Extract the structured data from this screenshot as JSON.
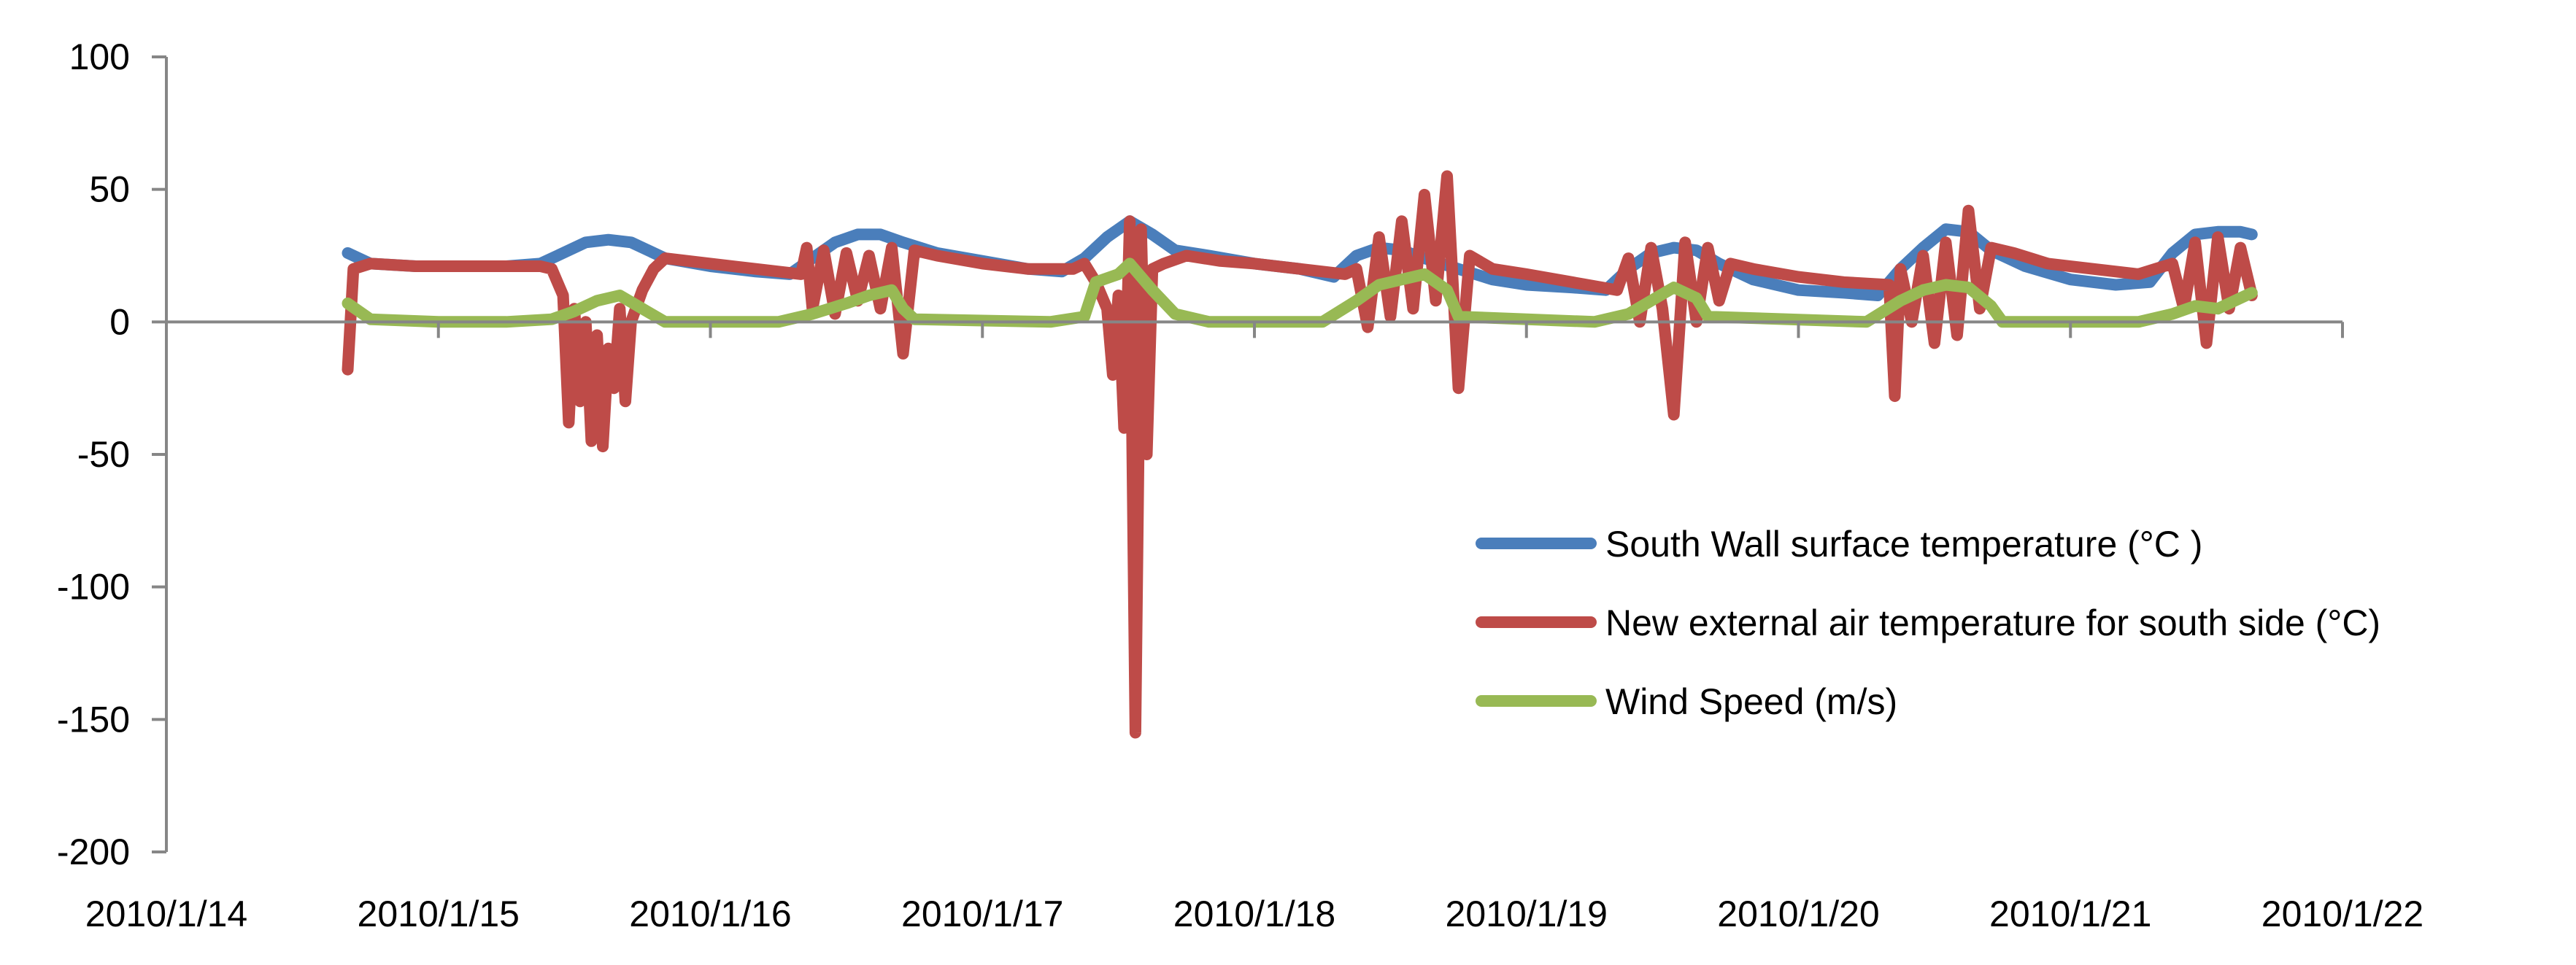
{
  "chart_data": {
    "type": "line",
    "title": "",
    "xlabel": "",
    "ylabel": "",
    "xlim": [
      "2010/1/14",
      "2010/1/22"
    ],
    "ylim": [
      -200,
      100
    ],
    "x_ticks": [
      "2010/1/14",
      "2010/1/15",
      "2010/1/16",
      "2010/1/17",
      "2010/1/18",
      "2010/1/19",
      "2010/1/20",
      "2010/1/21",
      "2010/1/22"
    ],
    "y_ticks": [
      -200,
      -150,
      -100,
      -50,
      0,
      50,
      100
    ],
    "grid": false,
    "legend_position": "right",
    "series": [
      {
        "name": "South Wall surface temperature  (°C )",
        "color": "#4a7ebb",
        "points": [
          [
            "2010/1/14 16:00",
            26
          ],
          [
            "2010/1/14 18:00",
            22
          ],
          [
            "2010/1/14 22:00",
            21
          ],
          [
            "2010/1/15 02:00",
            21
          ],
          [
            "2010/1/15 06:00",
            21
          ],
          [
            "2010/1/15 09:00",
            22
          ],
          [
            "2010/1/15 11:00",
            26
          ],
          [
            "2010/1/15 13:00",
            30
          ],
          [
            "2010/1/15 15:00",
            31
          ],
          [
            "2010/1/15 17:00",
            30
          ],
          [
            "2010/1/15 20:00",
            24
          ],
          [
            "2010/1/16 00:00",
            21
          ],
          [
            "2010/1/16 04:00",
            19
          ],
          [
            "2010/1/16 07:00",
            18
          ],
          [
            "2010/1/16 09:00",
            24
          ],
          [
            "2010/1/16 11:00",
            30
          ],
          [
            "2010/1/16 13:00",
            33
          ],
          [
            "2010/1/16 15:00",
            33
          ],
          [
            "2010/1/16 17:00",
            30
          ],
          [
            "2010/1/16 20:00",
            26
          ],
          [
            "2010/1/17 00:00",
            23
          ],
          [
            "2010/1/17 04:00",
            20
          ],
          [
            "2010/1/17 07:00",
            19
          ],
          [
            "2010/1/17 09:00",
            24
          ],
          [
            "2010/1/17 11:00",
            32
          ],
          [
            "2010/1/17 13:00",
            38
          ],
          [
            "2010/1/17 15:00",
            33
          ],
          [
            "2010/1/17 17:00",
            27
          ],
          [
            "2010/1/17 20:00",
            25
          ],
          [
            "2010/1/18 00:00",
            22
          ],
          [
            "2010/1/18 04:00",
            20
          ],
          [
            "2010/1/18 07:00",
            17
          ],
          [
            "2010/1/18 09:00",
            25
          ],
          [
            "2010/1/18 11:00",
            28
          ],
          [
            "2010/1/18 13:00",
            27
          ],
          [
            "2010/1/18 15:00",
            24
          ],
          [
            "2010/1/18 18:00",
            20
          ],
          [
            "2010/1/18 21:00",
            16
          ],
          [
            "2010/1/19 00:00",
            14
          ],
          [
            "2010/1/19 04:00",
            13
          ],
          [
            "2010/1/19 07:00",
            12
          ],
          [
            "2010/1/19 09:00",
            20
          ],
          [
            "2010/1/19 11:00",
            26
          ],
          [
            "2010/1/19 13:00",
            28
          ],
          [
            "2010/1/19 15:00",
            27
          ],
          [
            "2010/1/19 17:00",
            22
          ],
          [
            "2010/1/19 20:00",
            16
          ],
          [
            "2010/1/20 00:00",
            12
          ],
          [
            "2010/1/20 04:00",
            11
          ],
          [
            "2010/1/20 07:00",
            10
          ],
          [
            "2010/1/20 09:00",
            20
          ],
          [
            "2010/1/20 11:00",
            28
          ],
          [
            "2010/1/20 13:00",
            35
          ],
          [
            "2010/1/20 15:00",
            34
          ],
          [
            "2010/1/20 17:00",
            27
          ],
          [
            "2010/1/20 20:00",
            21
          ],
          [
            "2010/1/21 00:00",
            16
          ],
          [
            "2010/1/21 04:00",
            14
          ],
          [
            "2010/1/21 07:00",
            15
          ],
          [
            "2010/1/21 09:00",
            26
          ],
          [
            "2010/1/21 11:00",
            33
          ],
          [
            "2010/1/21 13:00",
            34
          ],
          [
            "2010/1/21 15:00",
            34
          ],
          [
            "2010/1/21 16:00",
            33
          ]
        ]
      },
      {
        "name": "New external air temperature for south side (°C)",
        "color": "#be4b48",
        "points": [
          [
            "2010/1/14 16:00",
            -18
          ],
          [
            "2010/1/14 16:30",
            20
          ],
          [
            "2010/1/14 18:00",
            22
          ],
          [
            "2010/1/14 22:00",
            21
          ],
          [
            "2010/1/15 04:00",
            21
          ],
          [
            "2010/1/15 09:00",
            21
          ],
          [
            "2010/1/15 10:00",
            20
          ],
          [
            "2010/1/15 11:00",
            10
          ],
          [
            "2010/1/15 11:30",
            -38
          ],
          [
            "2010/1/15 12:00",
            5
          ],
          [
            "2010/1/15 12:30",
            -30
          ],
          [
            "2010/1/15 13:00",
            0
          ],
          [
            "2010/1/15 13:30",
            -45
          ],
          [
            "2010/1/15 14:00",
            -5
          ],
          [
            "2010/1/15 14:30",
            -47
          ],
          [
            "2010/1/15 15:00",
            -10
          ],
          [
            "2010/1/15 15:30",
            -25
          ],
          [
            "2010/1/15 16:00",
            5
          ],
          [
            "2010/1/15 16:30",
            -30
          ],
          [
            "2010/1/15 17:00",
            0
          ],
          [
            "2010/1/15 18:00",
            12
          ],
          [
            "2010/1/15 19:00",
            20
          ],
          [
            "2010/1/15 20:00",
            24
          ],
          [
            "2010/1/16 00:00",
            22
          ],
          [
            "2010/1/16 04:00",
            20
          ],
          [
            "2010/1/16 08:00",
            18
          ],
          [
            "2010/1/16 08:30",
            28
          ],
          [
            "2010/1/16 09:00",
            5
          ],
          [
            "2010/1/16 10:00",
            27
          ],
          [
            "2010/1/16 11:00",
            3
          ],
          [
            "2010/1/16 12:00",
            26
          ],
          [
            "2010/1/16 13:00",
            8
          ],
          [
            "2010/1/16 14:00",
            25
          ],
          [
            "2010/1/16 15:00",
            5
          ],
          [
            "2010/1/16 16:00",
            28
          ],
          [
            "2010/1/16 17:00",
            -12
          ],
          [
            "2010/1/16 18:00",
            27
          ],
          [
            "2010/1/16 20:00",
            25
          ],
          [
            "2010/1/17 00:00",
            22
          ],
          [
            "2010/1/17 04:00",
            20
          ],
          [
            "2010/1/17 08:00",
            20
          ],
          [
            "2010/1/17 09:00",
            22
          ],
          [
            "2010/1/17 10:00",
            15
          ],
          [
            "2010/1/17 11:00",
            5
          ],
          [
            "2010/1/17 11:30",
            -20
          ],
          [
            "2010/1/17 12:00",
            10
          ],
          [
            "2010/1/17 12:30",
            -40
          ],
          [
            "2010/1/17 13:00",
            38
          ],
          [
            "2010/1/17 13:30",
            -155
          ],
          [
            "2010/1/17 14:00",
            35
          ],
          [
            "2010/1/17 14:30",
            -50
          ],
          [
            "2010/1/17 15:00",
            20
          ],
          [
            "2010/1/17 16:00",
            22
          ],
          [
            "2010/1/17 18:00",
            25
          ],
          [
            "2010/1/17 21:00",
            23
          ],
          [
            "2010/1/18 00:00",
            22
          ],
          [
            "2010/1/18 04:00",
            20
          ],
          [
            "2010/1/18 08:00",
            18
          ],
          [
            "2010/1/18 09:00",
            20
          ],
          [
            "2010/1/18 10:00",
            -2
          ],
          [
            "2010/1/18 11:00",
            32
          ],
          [
            "2010/1/18 12:00",
            2
          ],
          [
            "2010/1/18 13:00",
            38
          ],
          [
            "2010/1/18 14:00",
            5
          ],
          [
            "2010/1/18 15:00",
            48
          ],
          [
            "2010/1/18 16:00",
            8
          ],
          [
            "2010/1/18 17:00",
            55
          ],
          [
            "2010/1/18 18:00",
            -25
          ],
          [
            "2010/1/18 19:00",
            25
          ],
          [
            "2010/1/18 21:00",
            20
          ],
          [
            "2010/1/19 00:00",
            18
          ],
          [
            "2010/1/19 04:00",
            15
          ],
          [
            "2010/1/19 08:00",
            12
          ],
          [
            "2010/1/19 09:00",
            24
          ],
          [
            "2010/1/19 10:00",
            0
          ],
          [
            "2010/1/19 11:00",
            28
          ],
          [
            "2010/1/19 12:00",
            5
          ],
          [
            "2010/1/19 13:00",
            -35
          ],
          [
            "2010/1/19 14:00",
            30
          ],
          [
            "2010/1/19 15:00",
            0
          ],
          [
            "2010/1/19 16:00",
            28
          ],
          [
            "2010/1/19 17:00",
            8
          ],
          [
            "2010/1/19 18:00",
            22
          ],
          [
            "2010/1/19 20:00",
            20
          ],
          [
            "2010/1/20 00:00",
            17
          ],
          [
            "2010/1/20 04:00",
            15
          ],
          [
            "2010/1/20 08:00",
            14
          ],
          [
            "2010/1/20 08:30",
            -28
          ],
          [
            "2010/1/20 09:00",
            20
          ],
          [
            "2010/1/20 10:00",
            0
          ],
          [
            "2010/1/20 11:00",
            25
          ],
          [
            "2010/1/20 12:00",
            -8
          ],
          [
            "2010/1/20 13:00",
            30
          ],
          [
            "2010/1/20 14:00",
            -5
          ],
          [
            "2010/1/20 15:00",
            42
          ],
          [
            "2010/1/20 16:00",
            5
          ],
          [
            "2010/1/20 17:00",
            28
          ],
          [
            "2010/1/20 19:00",
            26
          ],
          [
            "2010/1/20 22:00",
            22
          ],
          [
            "2010/1/21 02:00",
            20
          ],
          [
            "2010/1/21 06:00",
            18
          ],
          [
            "2010/1/21 09:00",
            22
          ],
          [
            "2010/1/21 10:00",
            5
          ],
          [
            "2010/1/21 11:00",
            30
          ],
          [
            "2010/1/21 12:00",
            -8
          ],
          [
            "2010/1/21 13:00",
            32
          ],
          [
            "2010/1/21 14:00",
            5
          ],
          [
            "2010/1/21 15:00",
            28
          ],
          [
            "2010/1/21 16:00",
            10
          ]
        ]
      },
      {
        "name": "Wind Speed (m/s)",
        "color": "#98b954",
        "points": [
          [
            "2010/1/14 16:00",
            7
          ],
          [
            "2010/1/14 18:00",
            1
          ],
          [
            "2010/1/15 00:00",
            0
          ],
          [
            "2010/1/15 06:00",
            0
          ],
          [
            "2010/1/15 10:00",
            1
          ],
          [
            "2010/1/15 12:00",
            4
          ],
          [
            "2010/1/15 14:00",
            8
          ],
          [
            "2010/1/15 16:00",
            10
          ],
          [
            "2010/1/15 18:00",
            5
          ],
          [
            "2010/1/15 20:00",
            0
          ],
          [
            "2010/1/16 06:00",
            0
          ],
          [
            "2010/1/16 09:00",
            3
          ],
          [
            "2010/1/16 12:00",
            7
          ],
          [
            "2010/1/16 14:00",
            10
          ],
          [
            "2010/1/16 16:00",
            12
          ],
          [
            "2010/1/16 17:00",
            5
          ],
          [
            "2010/1/16 18:00",
            1
          ],
          [
            "2010/1/17 06:00",
            0
          ],
          [
            "2010/1/17 09:00",
            2
          ],
          [
            "2010/1/17 10:00",
            15
          ],
          [
            "2010/1/17 12:00",
            18
          ],
          [
            "2010/1/17 13:00",
            22
          ],
          [
            "2010/1/17 15:00",
            12
          ],
          [
            "2010/1/17 17:00",
            3
          ],
          [
            "2010/1/17 20:00",
            0
          ],
          [
            "2010/1/18 06:00",
            0
          ],
          [
            "2010/1/18 09:00",
            8
          ],
          [
            "2010/1/18 11:00",
            14
          ],
          [
            "2010/1/18 13:00",
            16
          ],
          [
            "2010/1/18 15:00",
            18
          ],
          [
            "2010/1/18 17:00",
            12
          ],
          [
            "2010/1/18 18:00",
            2
          ],
          [
            "2010/1/19 06:00",
            0
          ],
          [
            "2010/1/19 09:00",
            3
          ],
          [
            "2010/1/19 11:00",
            8
          ],
          [
            "2010/1/19 13:00",
            13
          ],
          [
            "2010/1/19 15:00",
            9
          ],
          [
            "2010/1/19 16:00",
            2
          ],
          [
            "2010/1/20 06:00",
            0
          ],
          [
            "2010/1/20 09:00",
            8
          ],
          [
            "2010/1/20 11:00",
            12
          ],
          [
            "2010/1/20 13:00",
            14
          ],
          [
            "2010/1/20 15:00",
            13
          ],
          [
            "2010/1/20 17:00",
            6
          ],
          [
            "2010/1/20 18:00",
            0
          ],
          [
            "2010/1/21 06:00",
            0
          ],
          [
            "2010/1/21 09:00",
            3
          ],
          [
            "2010/1/21 11:00",
            6
          ],
          [
            "2010/1/21 13:00",
            5
          ],
          [
            "2010/1/21 15:00",
            9
          ],
          [
            "2010/1/21 16:00",
            11
          ]
        ]
      }
    ]
  }
}
